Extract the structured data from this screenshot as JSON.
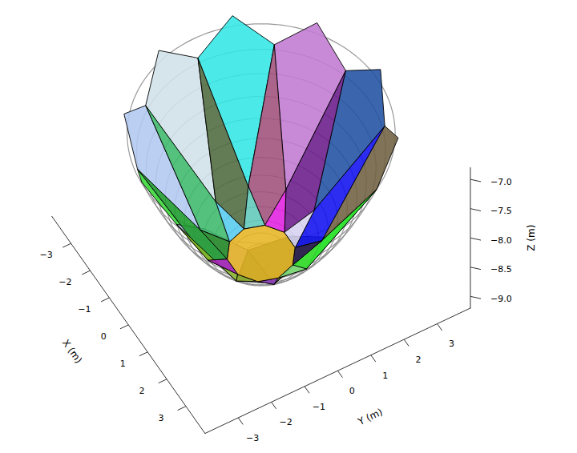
{
  "chart_data": {
    "type": "3d_polygons",
    "xlabel": "X (m)",
    "ylabel": "Y (m)",
    "zlabel": "Z (m)",
    "xlim": [
      -4,
      4
    ],
    "ylim": [
      -4,
      4
    ],
    "zlim": [
      -9.2,
      -6.8
    ],
    "xticks": [
      {
        "value": -3,
        "label": "−3"
      },
      {
        "value": -2,
        "label": "−2"
      },
      {
        "value": -1,
        "label": "−1"
      },
      0,
      1,
      2,
      3
    ],
    "yticks": [
      {
        "value": -3,
        "label": "−3"
      },
      {
        "value": -2,
        "label": "−2"
      },
      {
        "value": -1,
        "label": "−1"
      },
      0,
      1,
      2,
      3
    ],
    "zticks": [
      {
        "value": -9,
        "label": "−9.0"
      },
      {
        "value": -8.5,
        "label": "−8.5"
      },
      {
        "value": -8,
        "label": "−8.0"
      },
      {
        "value": -7.5,
        "label": "−7.5"
      },
      {
        "value": -7,
        "label": "−7.0"
      }
    ],
    "surface": {
      "color": "#808080",
      "r": [
        0,
        0.25,
        0.5,
        0.75,
        1,
        1.25,
        1.5,
        1.75,
        2,
        2.25,
        2.5,
        2.75,
        3,
        3.25,
        3.5
      ],
      "z": [
        -9.2,
        -9.19,
        -9.16,
        -9.1,
        -9.02,
        -8.92,
        -8.8,
        -8.65,
        -8.48,
        -8.29,
        -8.08,
        -7.84,
        -7.58,
        -7.3,
        -7.0
      ]
    },
    "panels": [
      {
        "color": "#22cc22",
        "vertices": [
          [
            1.52,
            0.49,
            -8.74
          ],
          [
            3.3,
            0,
            -7.24
          ],
          [
            3.42,
            1.11,
            -6.87
          ],
          [
            2.67,
            1.94,
            -7.24
          ]
        ]
      },
      {
        "color": "#706040",
        "vertices": [
          [
            0.94,
            1.29,
            -8.74
          ],
          [
            2.67,
            1.94,
            -7.24
          ],
          [
            2.12,
            2.91,
            -6.87
          ],
          [
            1.02,
            3.14,
            -7.24
          ]
        ]
      },
      {
        "color": "#2050a0",
        "vertices": [
          [
            0,
            1.6,
            -8.74
          ],
          [
            1.02,
            3.14,
            -7.24
          ],
          [
            0,
            3.6,
            -6.87
          ],
          [
            -1.02,
            3.14,
            -7.24
          ]
        ]
      },
      {
        "color": "#c07ad0",
        "vertices": [
          [
            -0.94,
            1.29,
            -8.74
          ],
          [
            -1.02,
            3.14,
            -7.24
          ],
          [
            -2.12,
            2.91,
            -6.87
          ],
          [
            -2.67,
            1.94,
            -7.24
          ]
        ]
      },
      {
        "color": "#33e6e6",
        "vertices": [
          [
            -1.52,
            0.49,
            -8.74
          ],
          [
            -2.67,
            1.94,
            -7.24
          ],
          [
            -3.42,
            1.11,
            -6.87
          ],
          [
            -3.3,
            0,
            -7.24
          ]
        ]
      },
      {
        "color": "#d0e0e8",
        "vertices": [
          [
            -1.52,
            -0.49,
            -8.74
          ],
          [
            -3.3,
            0,
            -7.24
          ],
          [
            -3.42,
            -1.11,
            -6.87
          ],
          [
            -2.67,
            -1.94,
            -7.24
          ]
        ]
      },
      {
        "color": "#b0c8f0",
        "vertices": [
          [
            -0.94,
            -1.29,
            -8.74
          ],
          [
            -2.67,
            -1.94,
            -7.24
          ],
          [
            -2.12,
            -2.91,
            -6.87
          ],
          [
            -1.02,
            -3.14,
            -7.24
          ]
        ]
      },
      {
        "color": "#38d838",
        "vertices": [
          [
            0,
            -1.6,
            -8.74
          ],
          [
            -1.02,
            -3.14,
            -7.24
          ],
          [
            0,
            -3.6,
            -6.87
          ],
          [
            1.02,
            -3.14,
            -7.24
          ]
        ]
      },
      {
        "color": "#c0b8e8",
        "vertices": [
          [
            0.94,
            -1.29,
            -8.74
          ],
          [
            1.02,
            -3.14,
            -7.24
          ],
          [
            2.12,
            -2.91,
            -6.87
          ],
          [
            2.67,
            -1.94,
            -7.24
          ]
        ]
      },
      {
        "color": "#4a6a4a",
        "vertices": [
          [
            1.52,
            -0.49,
            -8.74
          ],
          [
            2.67,
            -1.94,
            -7.24
          ],
          [
            3.42,
            -1.11,
            -6.87
          ],
          [
            3.3,
            0,
            -7.24
          ]
        ]
      },
      {
        "color": "#8e8e50",
        "vertices": [
          [
            0.9,
            0,
            -9.05
          ],
          [
            1.52,
            0.49,
            -8.74
          ],
          [
            3.3,
            0,
            -7.24
          ],
          [
            1.52,
            -0.49,
            -8.74
          ]
        ]
      },
      {
        "color": "#33e633",
        "vertices": [
          [
            0.73,
            0.53,
            -9.05
          ],
          [
            0.94,
            1.29,
            -8.74
          ],
          [
            2.67,
            1.94,
            -7.24
          ],
          [
            1.52,
            0.49,
            -8.74
          ]
        ]
      },
      {
        "color": "#1010f0",
        "vertices": [
          [
            0.28,
            0.86,
            -9.05
          ],
          [
            0,
            1.6,
            -8.74
          ],
          [
            1.02,
            3.14,
            -7.24
          ],
          [
            0.94,
            1.29,
            -8.74
          ]
        ]
      },
      {
        "color": "#6a1a8a",
        "vertices": [
          [
            -0.28,
            0.86,
            -9.05
          ],
          [
            -0.94,
            1.29,
            -8.74
          ],
          [
            -1.02,
            3.14,
            -7.24
          ],
          [
            0,
            1.6,
            -8.74
          ]
        ]
      },
      {
        "color": "#a0507a",
        "vertices": [
          [
            -0.73,
            0.53,
            -9.05
          ],
          [
            -1.52,
            0.49,
            -8.74
          ],
          [
            -2.67,
            1.94,
            -7.24
          ],
          [
            -0.94,
            1.29,
            -8.74
          ]
        ]
      },
      {
        "color": "#4e6a3e",
        "vertices": [
          [
            -0.9,
            0,
            -9.05
          ],
          [
            -1.52,
            -0.49,
            -8.74
          ],
          [
            -3.3,
            0,
            -7.24
          ],
          [
            -1.52,
            0.49,
            -8.74
          ]
        ]
      },
      {
        "color": "#3cb86a",
        "vertices": [
          [
            -0.73,
            -0.53,
            -9.05
          ],
          [
            -0.94,
            -1.29,
            -8.74
          ],
          [
            -2.67,
            -1.94,
            -7.24
          ],
          [
            -1.52,
            -0.49,
            -8.74
          ]
        ]
      },
      {
        "color": "#1a9a2a",
        "vertices": [
          [
            -0.28,
            -0.86,
            -9.05
          ],
          [
            0,
            -1.6,
            -8.74
          ],
          [
            -1.02,
            -3.14,
            -7.24
          ],
          [
            -0.94,
            -1.29,
            -8.74
          ]
        ]
      },
      {
        "color": "#8bb82a",
        "vertices": [
          [
            0.28,
            -0.86,
            -9.05
          ],
          [
            0.94,
            -1.29,
            -8.74
          ],
          [
            1.02,
            -3.14,
            -7.24
          ],
          [
            0,
            -1.6,
            -8.74
          ]
        ]
      },
      {
        "color": "#2e5e3e",
        "vertices": [
          [
            0.73,
            -0.53,
            -9.05
          ],
          [
            1.52,
            -0.49,
            -8.74
          ],
          [
            2.67,
            -1.94,
            -7.24
          ],
          [
            0.94,
            -1.29,
            -8.74
          ]
        ]
      },
      {
        "color": "#7de07d",
        "vertices": [
          [
            0.9,
            0,
            -9.05
          ],
          [
            0.73,
            0.53,
            -9.05
          ],
          [
            1.52,
            0.49,
            -8.74
          ]
        ]
      },
      {
        "color": "#2a1a50",
        "vertices": [
          [
            0.73,
            0.53,
            -9.05
          ],
          [
            0.28,
            0.86,
            -9.05
          ],
          [
            0.94,
            1.29,
            -8.74
          ]
        ]
      },
      {
        "color": "#d6d0f0",
        "vertices": [
          [
            0.28,
            0.86,
            -9.05
          ],
          [
            -0.28,
            0.86,
            -9.05
          ],
          [
            0,
            1.6,
            -8.74
          ]
        ]
      },
      {
        "color": "#e020e0",
        "vertices": [
          [
            -0.28,
            0.86,
            -9.05
          ],
          [
            -0.73,
            0.53,
            -9.05
          ],
          [
            -0.94,
            1.29,
            -8.74
          ]
        ]
      },
      {
        "color": "#5ec8b8",
        "vertices": [
          [
            -0.73,
            0.53,
            -9.05
          ],
          [
            -0.9,
            0,
            -9.05
          ],
          [
            -1.52,
            0.49,
            -8.74
          ]
        ]
      },
      {
        "color": "#55ccee",
        "vertices": [
          [
            -0.9,
            0,
            -9.05
          ],
          [
            -0.73,
            -0.53,
            -9.05
          ],
          [
            -1.52,
            -0.49,
            -8.74
          ]
        ]
      },
      {
        "color": "#228b22",
        "vertices": [
          [
            -0.73,
            -0.53,
            -9.05
          ],
          [
            -0.28,
            -0.86,
            -9.05
          ],
          [
            -0.94,
            -1.29,
            -8.74
          ]
        ]
      },
      {
        "color": "#a01fb0",
        "vertices": [
          [
            -0.28,
            -0.86,
            -9.05
          ],
          [
            0.28,
            -0.86,
            -9.05
          ],
          [
            0,
            -1.6,
            -8.74
          ]
        ]
      },
      {
        "color": "#94b030",
        "vertices": [
          [
            0.28,
            -0.86,
            -9.05
          ],
          [
            0.73,
            -0.53,
            -9.05
          ],
          [
            0.94,
            -1.29,
            -8.74
          ]
        ]
      },
      {
        "color": "#9440c0",
        "vertices": [
          [
            0.73,
            -0.53,
            -9.05
          ],
          [
            0.9,
            0,
            -9.05
          ],
          [
            1.52,
            -0.49,
            -8.74
          ]
        ]
      },
      {
        "color": "#e6b422",
        "vertices": [
          [
            0.9,
            0,
            -9.05
          ],
          [
            0.73,
            0.53,
            -9.05
          ],
          [
            0.28,
            0.86,
            -9.05
          ],
          [
            -0.28,
            0.86,
            -9.05
          ],
          [
            -0.73,
            0.53,
            -9.05
          ],
          [
            -0.9,
            0,
            -9.05
          ],
          [
            -0.73,
            -0.53,
            -9.05
          ],
          [
            -0.28,
            -0.86,
            -9.05
          ],
          [
            0.28,
            -0.86,
            -9.05
          ],
          [
            0.73,
            -0.53,
            -9.05
          ]
        ]
      }
    ]
  }
}
